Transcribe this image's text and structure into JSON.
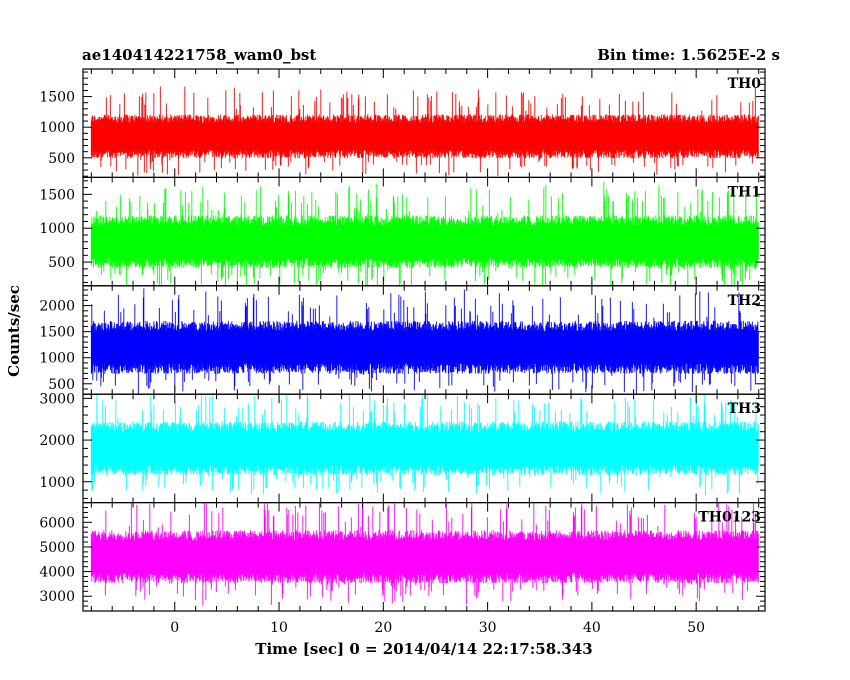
{
  "title_left": "ae140414221758_wam0_bst",
  "title_right": "Bin time: 1.5625E-2 s",
  "ylabel": "Counts/sec",
  "xlabel": "Time [sec] 0 = 2014/04/14 22:17:58.343",
  "chart_data": {
    "type": "line",
    "x_range": [
      -8.8,
      56.6
    ],
    "x_ticks": [
      0,
      10,
      20,
      30,
      40,
      50
    ],
    "x_minor_step": 2,
    "data_x_range": [
      -8.0,
      56.0
    ],
    "bin_time": 0.015625,
    "xlabel": "Time [sec] 0 = 2014/04/14 22:17:58.343",
    "ylabel": "Counts/sec",
    "panels": [
      {
        "name": "TH0",
        "color": "#ff0000",
        "ylim": [
          180,
          1950
        ],
        "yticks": [
          500,
          1000,
          1500
        ],
        "y_minor_step": 100,
        "mean": 850,
        "spread": 240,
        "min": 180,
        "max": 1950
      },
      {
        "name": "TH1",
        "color": "#00ff00",
        "ylim": [
          150,
          1750
        ],
        "yticks": [
          500,
          1000,
          1500
        ],
        "y_minor_step": 100,
        "mean": 800,
        "spread": 260,
        "min": 150,
        "max": 1750
      },
      {
        "name": "TH2",
        "color": "#0000ff",
        "ylim": [
          300,
          2380
        ],
        "yticks": [
          500,
          1000,
          1500,
          2000
        ],
        "y_minor_step": 100,
        "mean": 1200,
        "spread": 340,
        "min": 300,
        "max": 2380
      },
      {
        "name": "TH3",
        "color": "#00ffff",
        "ylim": [
          500,
          3100
        ],
        "yticks": [
          1000,
          2000,
          3000
        ],
        "y_minor_step": 200,
        "mean": 1800,
        "spread": 430,
        "min": 500,
        "max": 3100
      },
      {
        "name": "TH0123",
        "color": "#ff00ff",
        "ylim": [
          2400,
          6800
        ],
        "yticks": [
          3000,
          4000,
          5000,
          6000
        ],
        "y_minor_step": 200,
        "mean": 4600,
        "spread": 720,
        "min": 2400,
        "max": 6800
      }
    ]
  }
}
